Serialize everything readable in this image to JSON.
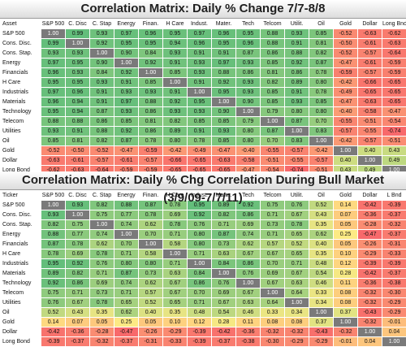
{
  "chart_data": [
    {
      "type": "heatmap",
      "title": "Correlation Matrix: Daily % Change 7/7-8/8",
      "corner_label": "Asset",
      "columns": [
        "S&P 500",
        "C. Disc",
        "C. Stap",
        "Energy",
        "Finan.",
        "H Care",
        "Indust.",
        "Mater.",
        "Tech",
        "Telcom",
        "Utilit.",
        "Oil",
        "Gold",
        "Dollar",
        "Long Bnd"
      ],
      "rows": [
        "S&P 500",
        "Cons. Disc.",
        "Cons. Stap.",
        "Energy",
        "Financials",
        "H Care",
        "Industrials",
        "Materials",
        "Technology",
        "Telecom",
        "Utilities",
        "Oil",
        "Gold",
        "Dollar",
        "Long Bond"
      ],
      "values": [
        [
          1.0,
          0.99,
          0.93,
          0.97,
          0.96,
          0.95,
          0.97,
          0.96,
          0.95,
          0.88,
          0.93,
          0.85,
          -0.52,
          -0.63,
          -0.62
        ],
        [
          0.99,
          1.0,
          0.92,
          0.95,
          0.95,
          0.94,
          0.96,
          0.95,
          0.96,
          0.88,
          0.91,
          0.81,
          -0.5,
          -0.61,
          -0.63
        ],
        [
          0.93,
          0.93,
          1.0,
          0.9,
          0.84,
          0.93,
          0.91,
          0.91,
          0.87,
          0.86,
          0.88,
          0.82,
          -0.52,
          -0.57,
          -0.64
        ],
        [
          0.97,
          0.95,
          0.9,
          1.0,
          0.92,
          0.91,
          0.93,
          0.97,
          0.93,
          0.85,
          0.92,
          0.87,
          -0.47,
          -0.61,
          -0.59
        ],
        [
          0.96,
          0.93,
          0.84,
          0.92,
          1.0,
          0.85,
          0.93,
          0.88,
          0.86,
          0.81,
          0.86,
          0.78,
          -0.59,
          -0.57,
          -0.59
        ],
        [
          0.95,
          0.95,
          0.93,
          0.91,
          0.85,
          1.0,
          0.91,
          0.92,
          0.93,
          0.82,
          0.89,
          0.8,
          -0.42,
          -0.66,
          -0.65
        ],
        [
          0.97,
          0.96,
          0.91,
          0.93,
          0.93,
          0.91,
          1.0,
          0.95,
          0.93,
          0.85,
          0.91,
          0.78,
          -0.49,
          -0.65,
          -0.65
        ],
        [
          0.96,
          0.94,
          0.91,
          0.97,
          0.88,
          0.92,
          0.95,
          1.0,
          0.9,
          0.85,
          0.93,
          0.85,
          -0.47,
          -0.63,
          -0.65
        ],
        [
          0.95,
          0.94,
          0.87,
          0.93,
          0.86,
          0.93,
          0.93,
          0.9,
          1.0,
          0.79,
          0.8,
          0.8,
          -0.4,
          -0.58,
          -0.47
        ],
        [
          0.88,
          0.88,
          0.86,
          0.85,
          0.81,
          0.82,
          0.85,
          0.85,
          0.79,
          1.0,
          0.87,
          0.7,
          -0.55,
          -0.51,
          -0.54
        ],
        [
          0.93,
          0.91,
          0.88,
          0.92,
          0.86,
          0.89,
          0.91,
          0.93,
          0.8,
          0.87,
          1.0,
          0.83,
          -0.57,
          -0.55,
          -0.74
        ],
        [
          0.85,
          0.81,
          0.82,
          0.87,
          0.78,
          0.8,
          0.78,
          0.85,
          0.8,
          0.7,
          0.83,
          1.0,
          -0.42,
          -0.57,
          -0.51
        ],
        [
          -0.52,
          -0.5,
          -0.52,
          -0.47,
          -0.59,
          -0.42,
          -0.49,
          -0.47,
          -0.4,
          -0.55,
          -0.57,
          -0.42,
          1.0,
          0.4,
          0.43
        ],
        [
          -0.63,
          -0.61,
          -0.57,
          -0.61,
          -0.57,
          -0.66,
          -0.65,
          -0.63,
          -0.58,
          -0.51,
          -0.55,
          -0.57,
          0.4,
          1.0,
          0.49
        ],
        [
          -0.62,
          -0.63,
          -0.64,
          -0.59,
          -0.59,
          -0.65,
          -0.65,
          -0.65,
          -0.47,
          -0.54,
          -0.74,
          -0.51,
          0.43,
          0.49,
          1.0
        ]
      ]
    },
    {
      "type": "heatmap",
      "title": "Correlation Matrix: Daily % Chg Correlation During Bull Market (3/9/09-7/7/11)",
      "corner_label": "Ticker",
      "columns": [
        "S&P 500",
        "C. Disc",
        "C. Stap",
        "Energy",
        "Finan.",
        "H Care",
        "Indust.",
        "Mater.",
        "Tech",
        "Telcom",
        "Utilit.",
        "Oil",
        "Gold",
        "Dollar",
        "L Bnd"
      ],
      "rows": [
        "S&P 500",
        "Cons. Disc.",
        "Cons. Stap.",
        "Energy",
        "Financials",
        "H Care",
        "Industrials",
        "Materials",
        "Technology",
        "Telecom",
        "Utilities",
        "Oil",
        "Gold",
        "Dollar",
        "Long Bond"
      ],
      "values": [
        [
          1.0,
          0.93,
          0.82,
          0.88,
          0.87,
          0.78,
          0.95,
          0.89,
          0.92,
          0.75,
          0.76,
          0.52,
          0.14,
          -0.42,
          -0.39
        ],
        [
          0.93,
          1.0,
          0.75,
          0.77,
          0.78,
          0.69,
          0.92,
          0.82,
          0.86,
          0.71,
          0.67,
          0.43,
          0.07,
          -0.36,
          -0.37
        ],
        [
          0.82,
          0.75,
          1.0,
          0.74,
          0.62,
          0.78,
          0.76,
          0.71,
          0.69,
          0.73,
          0.78,
          0.35,
          0.05,
          -0.28,
          -0.32
        ],
        [
          0.88,
          0.77,
          0.74,
          1.0,
          0.7,
          0.71,
          0.8,
          0.87,
          0.74,
          0.71,
          0.65,
          0.62,
          0.25,
          -0.47,
          -0.37
        ],
        [
          0.87,
          0.78,
          0.62,
          0.7,
          1.0,
          0.58,
          0.8,
          0.73,
          0.62,
          0.57,
          0.52,
          0.4,
          0.05,
          -0.26,
          -0.31
        ],
        [
          0.78,
          0.69,
          0.78,
          0.71,
          0.58,
          1.0,
          0.71,
          0.63,
          0.67,
          0.67,
          0.65,
          0.35,
          0.1,
          -0.29,
          -0.33
        ],
        [
          0.95,
          0.92,
          0.76,
          0.8,
          0.8,
          0.71,
          1.0,
          0.84,
          0.86,
          0.7,
          0.71,
          0.48,
          0.12,
          -0.39,
          -0.39
        ],
        [
          0.89,
          0.82,
          0.71,
          0.87,
          0.73,
          0.63,
          0.84,
          1.0,
          0.76,
          0.69,
          0.67,
          0.54,
          0.28,
          -0.42,
          -0.37
        ],
        [
          0.92,
          0.86,
          0.69,
          0.74,
          0.62,
          0.67,
          0.86,
          0.76,
          1.0,
          0.67,
          0.63,
          0.46,
          0.11,
          -0.36,
          -0.38
        ],
        [
          0.75,
          0.71,
          0.73,
          0.71,
          0.57,
          0.67,
          0.7,
          0.69,
          0.67,
          1.0,
          0.64,
          0.33,
          0.08,
          -0.32,
          -0.3
        ],
        [
          0.76,
          0.67,
          0.78,
          0.65,
          0.52,
          0.65,
          0.71,
          0.67,
          0.63,
          0.64,
          1.0,
          0.34,
          0.08,
          -0.32,
          -0.29
        ],
        [
          0.52,
          0.43,
          0.35,
          0.62,
          0.4,
          0.35,
          0.48,
          0.54,
          0.46,
          0.33,
          0.34,
          1.0,
          0.37,
          -0.43,
          -0.29
        ],
        [
          0.14,
          0.07,
          0.05,
          0.25,
          0.05,
          0.1,
          0.12,
          0.28,
          0.11,
          0.08,
          0.08,
          0.37,
          1.0,
          -0.32,
          -0.01
        ],
        [
          -0.42,
          -0.36,
          -0.28,
          -0.47,
          -0.26,
          -0.29,
          -0.39,
          -0.42,
          -0.36,
          -0.32,
          -0.32,
          -0.43,
          -0.32,
          1.0,
          0.04
        ],
        [
          -0.39,
          -0.37,
          -0.32,
          -0.37,
          -0.31,
          -0.33,
          -0.39,
          -0.37,
          -0.38,
          -0.3,
          -0.29,
          -0.29,
          -0.01,
          0.04,
          1.0
        ]
      ]
    }
  ],
  "colors": {
    "high": "#63be7b",
    "mid": "#ffeb84",
    "low": "#f8696b",
    "diagonal": "#7a7a7a"
  }
}
